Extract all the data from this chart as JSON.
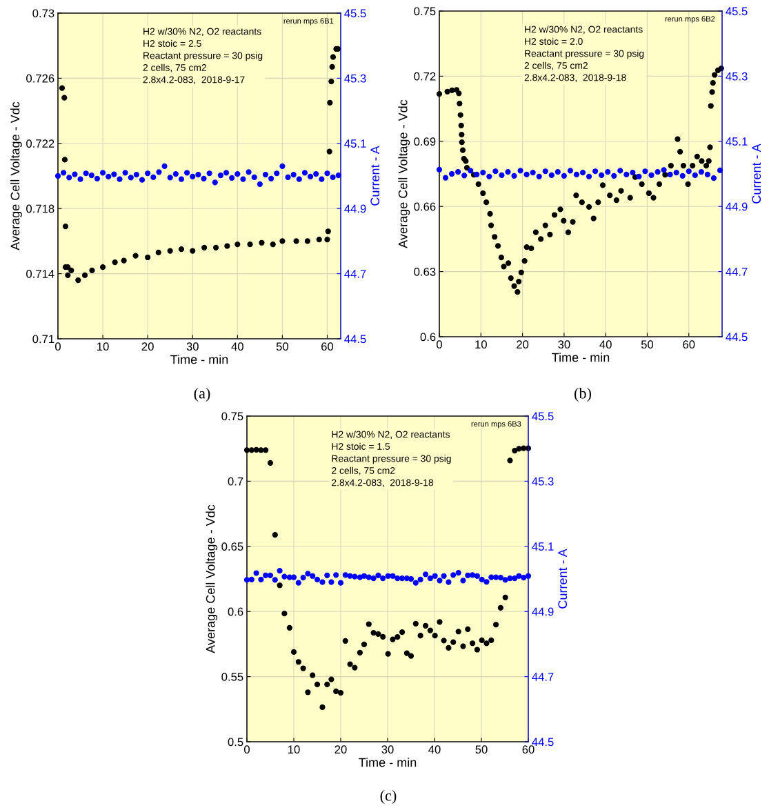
{
  "chart_data": [
    {
      "type": "scatter",
      "xlabel": "Time - min",
      "ylabel": "Average Cell Voltage - Vdc",
      "y2label": "Current - A",
      "marker": "circle",
      "grid": true,
      "legend": false,
      "xlim": [
        0,
        63
      ],
      "xticks": [
        0,
        10,
        20,
        30,
        40,
        50,
        60
      ],
      "ylim": [
        0.71,
        0.73
      ],
      "yticks": [
        0.71,
        0.714,
        0.718,
        0.722,
        0.726,
        0.73
      ],
      "y2lim": [
        44.5,
        45.5
      ],
      "y2ticks": [
        44.5,
        44.7,
        44.9,
        45.1,
        45.3,
        45.5
      ],
      "annotations": [
        "H2 w/30% N2, O2 reactants\nH2 stoic = 2.5\nReactant pressure = 30 psig\n2 cells, 75 cm2\n2.8x4.2-083,  2018-9-17",
        "rerun mps 6B1",
        "(a)"
      ],
      "series": [
        {
          "color": "#000000",
          "x": [
            0.92,
            1.43,
            1.53,
            1.69,
            1.69,
            2.2,
            2.2,
            2.97,
            4.5,
            6.0,
            7.6,
            10,
            12.7,
            14.7,
            17.3,
            20,
            22.4,
            25,
            27.5,
            30,
            32.6,
            35.2,
            37.7,
            40,
            42.8,
            45.4,
            47.9,
            50,
            53.1,
            55.6,
            58.2,
            60,
            60.2,
            60.5,
            60.6,
            60.9,
            61.1,
            61.3,
            62.0,
            62.4
          ],
          "values": [
            0.7254,
            0.7248,
            0.721,
            0.7169,
            0.7144,
            0.7144,
            0.7139,
            0.7142,
            0.7136,
            0.7139,
            0.7142,
            0.7144,
            0.7147,
            0.7148,
            0.7151,
            0.715,
            0.7153,
            0.7154,
            0.7155,
            0.7154,
            0.7156,
            0.7156,
            0.7157,
            0.7158,
            0.7158,
            0.7159,
            0.7158,
            0.716,
            0.716,
            0.716,
            0.7161,
            0.7161,
            0.7166,
            0.7215,
            0.7245,
            0.7258,
            0.7267,
            0.7273,
            0.7278,
            0.7278
          ]
        },
        {
          "color": "#0000ff",
          "axis": "y2",
          "x": [
            0,
            1.25,
            2.5,
            3.75,
            5,
            6.25,
            7.5,
            8.75,
            10,
            11.25,
            12.5,
            13.75,
            15,
            16.25,
            17.5,
            18.75,
            20,
            21.25,
            22.5,
            23.75,
            25,
            26.25,
            27.5,
            28.75,
            30,
            31.25,
            32.5,
            33.75,
            35,
            36.25,
            37.5,
            38.75,
            40,
            41.25,
            42.5,
            43.75,
            45,
            46.25,
            47.5,
            48.75,
            50,
            51.25,
            52.5,
            53.75,
            55,
            56.25,
            57.5,
            58.75,
            60,
            61.25,
            62.5
          ],
          "values": [
            45.0,
            45.01,
            44.995,
            45.005,
            44.99,
            45.008,
            45.002,
            44.992,
            45.01,
            44.998,
            45.005,
            44.99,
            45.01,
            44.995,
            45.004,
            44.988,
            45.008,
            44.996,
            45.012,
            45.03,
            44.995,
            45.006,
            44.99,
            45.01,
            44.998,
            45.004,
            44.992,
            45.008,
            44.98,
            45.002,
            45.01,
            44.994,
            45.006,
            44.99,
            45.012,
            44.996,
            44.975,
            45.004,
            44.992,
            45.008,
            45.03,
            44.996,
            45.004,
            44.99,
            45.01,
            44.998,
            45.006,
            44.99,
            45.008,
            44.996,
            45.002
          ]
        }
      ]
    },
    {
      "type": "scatter",
      "xlabel": "Time - min",
      "ylabel": "Average Cell Voltage - Vdc",
      "y2label": "Current - A",
      "marker": "circle",
      "grid": true,
      "legend": false,
      "xlim": [
        0,
        68
      ],
      "xticks": [
        0,
        10,
        20,
        30,
        40,
        50,
        60
      ],
      "ylim": [
        0.6,
        0.75
      ],
      "yticks": [
        0.6,
        0.63,
        0.66,
        0.69,
        0.72,
        0.75
      ],
      "y2lim": [
        44.5,
        45.5
      ],
      "y2ticks": [
        44.5,
        44.7,
        44.9,
        45.1,
        45.3,
        45.5
      ],
      "annotations": [
        "H2 w/30% N2, O2 reactants\nH2 stoic = 2.0\nReactant pressure = 30 psig\n2 cells, 75 cm2\n2.8x4.2-083,  2018-9-18",
        "rerun mps 6B2",
        "(b)"
      ],
      "series": [
        {
          "color": "#000000",
          "x": [
            0.0,
            1.93,
            3.04,
            4.15,
            4.7,
            4.87,
            5.09,
            5.26,
            5.37,
            5.42,
            5.64,
            5.92,
            6.36,
            6.64,
            8.3,
            9.4,
            10.5,
            11.3,
            12.2,
            12.45,
            13.3,
            14.1,
            14.9,
            15.5,
            16.6,
            17.2,
            18.0,
            18.8,
            19.1,
            19.7,
            20.5,
            21.0,
            22.1,
            23.2,
            24.4,
            25.5,
            26.6,
            27.7,
            29.1,
            29.9,
            31.0,
            32.1,
            32.9,
            34.3,
            36.0,
            37.1,
            38.2,
            39.3,
            41.0,
            42.6,
            43.7,
            45.9,
            47.1,
            48.7,
            50.4,
            51.5,
            52.9,
            54.3,
            55.7,
            57.3,
            57.9,
            58.7,
            59.8,
            60.9,
            62.0,
            63.1,
            64.2,
            64.8,
            65.1,
            65.3,
            65.6,
            65.8,
            66.2,
            67.0,
            67.8
          ],
          "values": [
            0.7118,
            0.7129,
            0.7135,
            0.7137,
            0.7121,
            0.7074,
            0.7021,
            0.6973,
            0.6931,
            0.6896,
            0.6859,
            0.682,
            0.6809,
            0.6778,
            0.6746,
            0.6703,
            0.6661,
            0.6619,
            0.6566,
            0.6513,
            0.646,
            0.6418,
            0.6365,
            0.6323,
            0.6339,
            0.627,
            0.6233,
            0.6206,
            0.6254,
            0.6296,
            0.6349,
            0.6413,
            0.6407,
            0.6481,
            0.645,
            0.6513,
            0.6471,
            0.6561,
            0.6587,
            0.6534,
            0.6481,
            0.6529,
            0.6651,
            0.6619,
            0.6598,
            0.6545,
            0.6619,
            0.6698,
            0.6651,
            0.6629,
            0.6672,
            0.664,
            0.6735,
            0.6703,
            0.6661,
            0.664,
            0.6703,
            0.6746,
            0.6788,
            0.691,
            0.6852,
            0.6788,
            0.6703,
            0.6788,
            0.683,
            0.6809,
            0.6788,
            0.6809,
            0.6873,
            0.7063,
            0.7127,
            0.7169,
            0.7206,
            0.7227,
            0.7236
          ]
        },
        {
          "color": "#0000ff",
          "axis": "y2",
          "x": [
            0,
            1.5,
            3,
            4.5,
            6,
            7.5,
            9,
            10.5,
            12,
            13.5,
            15,
            16.5,
            18,
            19.5,
            21,
            22.5,
            24,
            25.5,
            27,
            28.5,
            30,
            31.5,
            33,
            34.5,
            36,
            37.5,
            39,
            40.5,
            42,
            43.5,
            45,
            46.5,
            48,
            49.5,
            51,
            52.5,
            54,
            55.5,
            57,
            58.5,
            60,
            61.5,
            63,
            64.5,
            66,
            67.5
          ],
          "values": [
            45.013,
            44.988,
            45.0,
            45.006,
            44.995,
            45.01,
            44.998,
            45.004,
            44.992,
            45.008,
            44.996,
            45.006,
            44.994,
            45.01,
            44.998,
            45.004,
            44.992,
            45.008,
            44.996,
            45.006,
            44.994,
            45.01,
            44.998,
            45.004,
            44.992,
            45.008,
            44.996,
            45.006,
            44.994,
            45.01,
            44.998,
            45.004,
            44.992,
            45.008,
            44.996,
            45.006,
            45.012,
            44.998,
            45.004,
            44.994,
            45.008,
            44.996,
            45.006,
            44.998,
            44.987,
            45.011
          ]
        }
      ]
    },
    {
      "type": "scatter",
      "xlabel": "Time - min",
      "ylabel": "Average Cell Voltage - Vdc",
      "y2label": "Current - A",
      "marker": "circle",
      "grid": true,
      "legend": false,
      "xlim": [
        0,
        60
      ],
      "xticks": [
        0,
        10,
        20,
        30,
        40,
        50,
        60
      ],
      "ylim": [
        0.5,
        0.75
      ],
      "yticks": [
        0.5,
        0.55,
        0.6,
        0.65,
        0.7,
        0.75
      ],
      "y2lim": [
        44.5,
        45.5
      ],
      "y2ticks": [
        44.5,
        44.7,
        44.9,
        45.1,
        45.3,
        45.5
      ],
      "annotations": [
        "H2 w/30% N2, O2 reactants\nH2 stoic = 1.5\nReactant pressure = 30 psig\n2 cells, 75 cm2\n2.8x4.2-083,  2018-9-18",
        "rerun mps 6B3",
        "(c)"
      ],
      "series": [
        {
          "color": "#000000",
          "x": [
            0,
            1,
            2,
            3,
            4,
            5,
            6,
            7,
            8,
            9.1,
            10,
            11,
            12,
            13,
            14,
            15,
            16.1,
            17.1,
            18,
            19,
            20,
            21,
            22,
            23,
            24.1,
            25,
            26,
            27,
            28,
            29,
            30.1,
            31.1,
            32.1,
            33.1,
            34.1,
            35,
            36,
            37,
            38.1,
            39.1,
            40.1,
            41.1,
            42,
            43,
            44,
            45.1,
            46.1,
            47.1,
            48.1,
            49.1,
            50.1,
            51.1,
            52.1,
            53.1,
            54.1,
            55.1,
            56.1,
            57.1,
            58,
            59,
            60
          ],
          "values": [
            0.7239,
            0.7239,
            0.7241,
            0.7239,
            0.7239,
            0.7141,
            0.6588,
            0.6201,
            0.5984,
            0.5875,
            0.5689,
            0.5613,
            0.5564,
            0.538,
            0.5511,
            0.544,
            0.5265,
            0.544,
            0.5479,
            0.5387,
            0.5376,
            0.5774,
            0.5595,
            0.5569,
            0.5684,
            0.5747,
            0.5903,
            0.5836,
            0.5827,
            0.5806,
            0.5675,
            0.5786,
            0.5804,
            0.5841,
            0.568,
            0.5659,
            0.5906,
            0.5815,
            0.589,
            0.5855,
            0.5815,
            0.592,
            0.5777,
            0.5721,
            0.5765,
            0.5846,
            0.5733,
            0.5864,
            0.5756,
            0.5707,
            0.5779,
            0.5756,
            0.5779,
            0.5899,
            0.6028,
            0.6108,
            0.7159,
            0.7235,
            0.7249,
            0.7253,
            0.7253
          ]
        },
        {
          "color": "#0000ff",
          "axis": "y2",
          "x": [
            0,
            1,
            2,
            3,
            4,
            5,
            6,
            7,
            8,
            9.1,
            10,
            11,
            12,
            13,
            14,
            15,
            16.1,
            17.1,
            18,
            19,
            20,
            21,
            22,
            23,
            24.1,
            25,
            26,
            27,
            28,
            29,
            30.1,
            31.1,
            32.1,
            33.1,
            34.1,
            35,
            36,
            37,
            38.1,
            39.1,
            40.1,
            41.1,
            42,
            43,
            44,
            45.1,
            46.1,
            47.1,
            48.1,
            49.1,
            50.1,
            51.1,
            52.1,
            53.1,
            54.1,
            55.1,
            56.1,
            57.1,
            58,
            59,
            60
          ],
          "values": [
            44.997,
            44.998,
            45.018,
            44.998,
            45.011,
            45.011,
            44.997,
            45.025,
            45.007,
            45.005,
            45.005,
            44.988,
            45.004,
            45.016,
            45.009,
            44.998,
            44.99,
            45.011,
            44.99,
            45.012,
            44.988,
            45.012,
            45.009,
            45.007,
            45.005,
            45.009,
            45.005,
            45.002,
            45.011,
            45.002,
            45.009,
            45.009,
            45.002,
            45.002,
            45.002,
            45.0,
            44.988,
            44.998,
            45.014,
            45.002,
            45.009,
            44.995,
            45.009,
            44.99,
            45.012,
            45.019,
            44.995,
            45.011,
            45.012,
            45.009,
            44.998,
            44.991,
            45.005,
            45.005,
            45.004,
            44.997,
            45.002,
            45.002,
            45.009,
            45.004,
            45.009
          ]
        }
      ]
    }
  ]
}
